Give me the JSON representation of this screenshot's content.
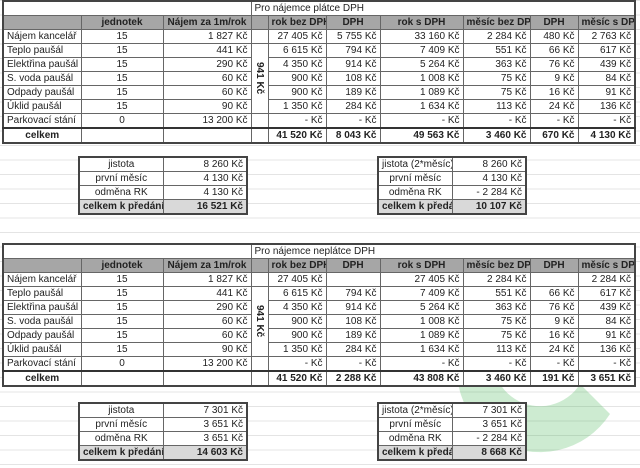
{
  "columns": [
    "",
    "jednotek",
    "Nájem za 1m/rok",
    "",
    "rok bez DPH",
    "DPH",
    "rok s DPH",
    "měsíc bez DPH",
    "DPH",
    "měsíc s DPH"
  ],
  "merged_label": "941 Kč",
  "watermark_color": "#3cb44b",
  "tables": [
    {
      "title": "Pro nájemce plátce DPH",
      "rows": [
        [
          "Nájem kancelář",
          "15",
          "1 827 Kč",
          "27 405 Kč",
          "5 755 Kč",
          "33 160 Kč",
          "2 284 Kč",
          "480 Kč",
          "2 763 Kč"
        ],
        [
          "Teplo paušál",
          "15",
          "441 Kč",
          "6 615 Kč",
          "794 Kč",
          "7 409 Kč",
          "551 Kč",
          "66 Kč",
          "617 Kč"
        ],
        [
          "Elektřina paušál",
          "15",
          "290 Kč",
          "4 350 Kč",
          "914 Kč",
          "5 264 Kč",
          "363 Kč",
          "76 Kč",
          "439 Kč"
        ],
        [
          "S. voda paušál",
          "15",
          "60 Kč",
          "900 Kč",
          "108 Kč",
          "1 008 Kč",
          "75 Kč",
          "9 Kč",
          "84 Kč"
        ],
        [
          "Odpady paušál",
          "15",
          "60 Kč",
          "900 Kč",
          "189 Kč",
          "1 089 Kč",
          "75 Kč",
          "16 Kč",
          "91 Kč"
        ],
        [
          "Úklid paušál",
          "15",
          "90 Kč",
          "1 350 Kč",
          "284 Kč",
          "1 634 Kč",
          "113 Kč",
          "24 Kč",
          "136 Kč"
        ],
        [
          "Parkovací stání",
          "0",
          "13 200 Kč",
          "-   Kč",
          "-   Kč",
          "-   Kč",
          "-   Kč",
          "-   Kč",
          "-   Kč"
        ]
      ],
      "total": [
        "celkem",
        "",
        "",
        "41 520 Kč",
        "8 043 Kč",
        "49 563 Kč",
        "3 460 Kč",
        "670 Kč",
        "4 130 Kč"
      ],
      "summary_left": [
        [
          "jistota",
          "8 260 Kč"
        ],
        [
          "první měsíc",
          "4 130 Kč"
        ],
        [
          "odměna RK",
          "4 130 Kč"
        ],
        [
          "celkem k předání",
          "16 521 Kč"
        ]
      ],
      "summary_right": [
        [
          "jistota (2*měsíc)",
          "8 260 Kč"
        ],
        [
          "první měsíc",
          "4 130 Kč"
        ],
        [
          "odměna RK",
          "-   2 284 Kč"
        ],
        [
          "celkem k předání",
          "10 107 Kč"
        ]
      ]
    },
    {
      "title": "Pro nájemce neplátce DPH",
      "rows": [
        [
          "Nájem kancelář",
          "15",
          "1 827 Kč",
          "27 405 Kč",
          "",
          "27 405 Kč",
          "2 284 Kč",
          "",
          "2 284 Kč"
        ],
        [
          "Teplo paušál",
          "15",
          "441 Kč",
          "6 615 Kč",
          "794 Kč",
          "7 409 Kč",
          "551 Kč",
          "66 Kč",
          "617 Kč"
        ],
        [
          "Elektřina paušál",
          "15",
          "290 Kč",
          "4 350 Kč",
          "914 Kč",
          "5 264 Kč",
          "363 Kč",
          "76 Kč",
          "439 Kč"
        ],
        [
          "S. voda paušál",
          "15",
          "60 Kč",
          "900 Kč",
          "108 Kč",
          "1 008 Kč",
          "75 Kč",
          "9 Kč",
          "84 Kč"
        ],
        [
          "Odpady paušál",
          "15",
          "60 Kč",
          "900 Kč",
          "189 Kč",
          "1 089 Kč",
          "75 Kč",
          "16 Kč",
          "91 Kč"
        ],
        [
          "Úklid paušál",
          "15",
          "90 Kč",
          "1 350 Kč",
          "284 Kč",
          "1 634 Kč",
          "113 Kč",
          "24 Kč",
          "136 Kč"
        ],
        [
          "Parkovací stání",
          "0",
          "13 200 Kč",
          "-   Kč",
          "-   Kč",
          "-   Kč",
          "-   Kč",
          "-   Kč",
          "-   Kč"
        ]
      ],
      "total": [
        "celkem",
        "",
        "",
        "41 520 Kč",
        "2 288 Kč",
        "43 808 Kč",
        "3 460 Kč",
        "191 Kč",
        "3 651 Kč"
      ],
      "summary_left": [
        [
          "jistota",
          "7 301 Kč"
        ],
        [
          "první měsíc",
          "3 651 Kč"
        ],
        [
          "odměna RK",
          "3 651 Kč"
        ],
        [
          "celkem k předání",
          "14 603 Kč"
        ]
      ],
      "summary_right": [
        [
          "jistota (2*měsíc)",
          "7 301 Kč"
        ],
        [
          "první měsíc",
          "3 651 Kč"
        ],
        [
          "odměna RK",
          "-   2 284 Kč"
        ],
        [
          "celkem k předání",
          "8 668 Kč"
        ]
      ]
    }
  ]
}
